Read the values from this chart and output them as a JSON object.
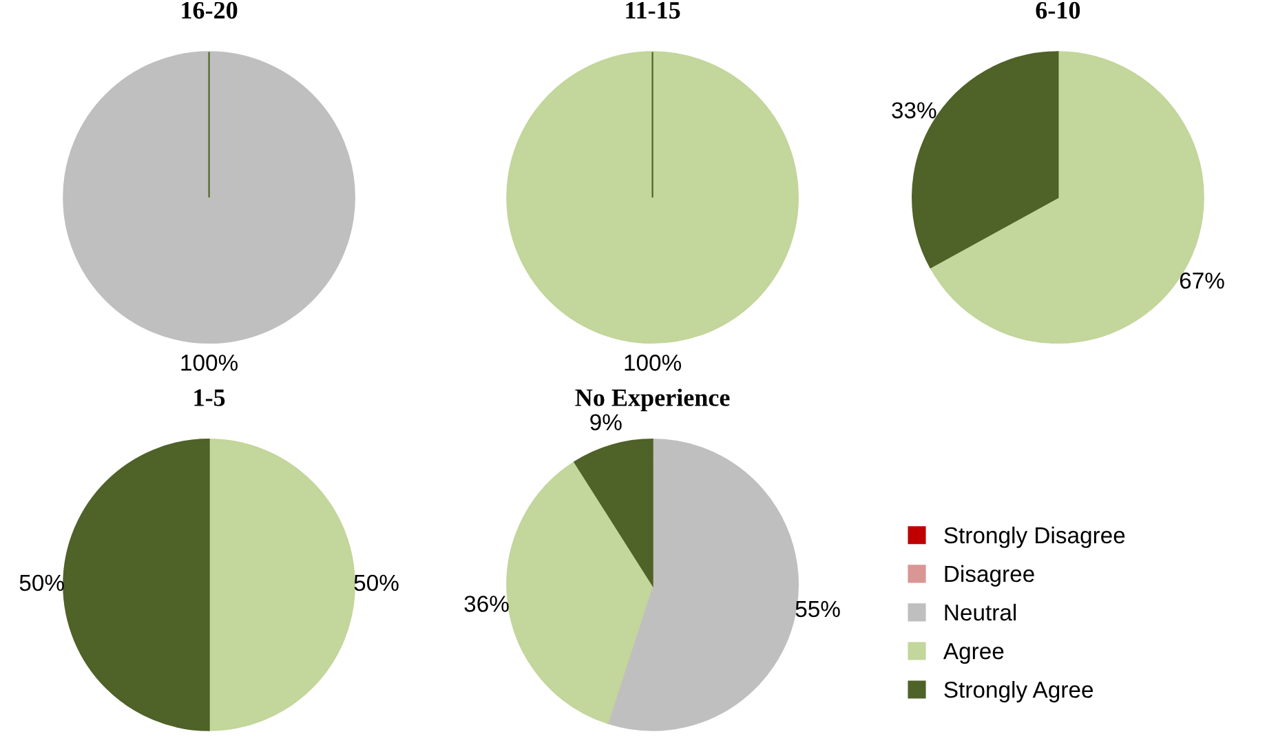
{
  "chart_data": [
    {
      "type": "pie",
      "title": "16-20",
      "categories": [
        null,
        null,
        null,
        null,
        null
      ],
      "values": [
        0,
        0,
        100,
        0,
        0
      ],
      "value_labels": [
        null,
        null,
        "100%",
        null,
        null
      ],
      "colors": [
        "#c00000",
        "#d99694",
        "#bfbfbf",
        "#c3d69b",
        "#4f6228"
      ],
      "legend": false
    },
    {
      "type": "pie",
      "title": "11-15",
      "categories": [
        null,
        null,
        null,
        null,
        null
      ],
      "values": [
        0,
        0,
        0,
        100,
        0
      ],
      "value_labels": [
        null,
        null,
        null,
        "100%",
        null
      ],
      "colors": [
        "#c00000",
        "#d99694",
        "#bfbfbf",
        "#c3d69b",
        "#4f6228"
      ],
      "legend": false
    },
    {
      "type": "pie",
      "title": "6-10",
      "categories": [
        null,
        null,
        null,
        null,
        null
      ],
      "values": [
        0,
        0,
        0,
        67,
        33
      ],
      "value_labels": [
        null,
        null,
        null,
        "67%",
        "33%"
      ],
      "colors": [
        "#c00000",
        "#d99694",
        "#bfbfbf",
        "#c3d69b",
        "#4f6228"
      ],
      "legend": false
    },
    {
      "type": "pie",
      "title": "1-5",
      "categories": [
        null,
        null,
        null,
        null,
        null
      ],
      "values": [
        0,
        0,
        0,
        50,
        50
      ],
      "value_labels": [
        null,
        null,
        null,
        "50%",
        "50%"
      ],
      "colors": [
        "#c00000",
        "#d99694",
        "#bfbfbf",
        "#c3d69b",
        "#4f6228"
      ],
      "legend": false
    },
    {
      "type": "pie",
      "title": "No Experience",
      "categories": [
        "Strongly Disagree",
        "Disagree",
        "Neutral",
        "Agree",
        "Strongly Agree"
      ],
      "values": [
        0,
        0,
        55,
        36,
        9
      ],
      "value_labels": [
        null,
        null,
        "55%",
        "36%",
        "9%"
      ],
      "colors": [
        "#c00000",
        "#d99694",
        "#bfbfbf",
        "#c3d69b",
        "#4f6228"
      ],
      "legend": "right"
    }
  ]
}
